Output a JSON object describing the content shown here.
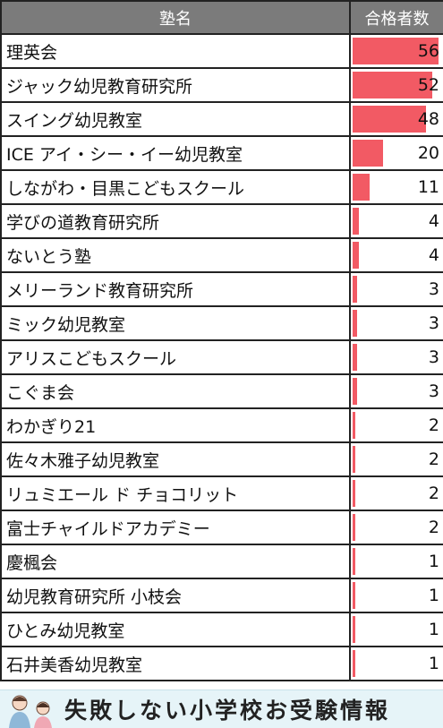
{
  "chart_data": {
    "type": "bar",
    "headers": [
      "塾名",
      "合格者数"
    ],
    "categories": [
      "理英会",
      "ジャック幼児教育研究所",
      "スイング幼児教室",
      "ICE アイ・シー・イー幼児教室",
      "しながわ・目黒こどもスクール",
      "学びの道教育研究所",
      "ないとう塾",
      "メリーランド教育研究所",
      "ミック幼児教室",
      "アリスこどもスクール",
      "こぐま会",
      "わかぎり21",
      "佐々木雅子幼児教室",
      "リュミエール ド チョコリット",
      "富士チャイルドアカデミー",
      "慶楓会",
      "幼児教育研究所 小枝会",
      "ひとみ幼児教室",
      "石井美香幼児教室"
    ],
    "values": [
      56,
      52,
      48,
      20,
      11,
      4,
      4,
      3,
      3,
      3,
      3,
      2,
      2,
      2,
      2,
      1,
      1,
      1,
      1
    ],
    "max_value": 56,
    "bar_color": "#f25a64"
  },
  "footer": {
    "brand": "失敗しない小学校お受験情報",
    "icon": "parent-child-mascot-icon"
  }
}
